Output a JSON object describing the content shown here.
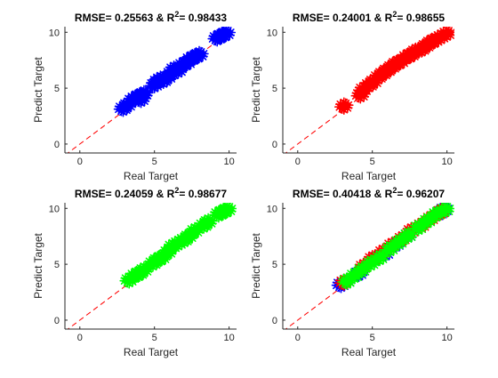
{
  "chart_data": [
    {
      "type": "scatter",
      "title": {
        "rmse_label": "RMSE= ",
        "rmse": "0.25563",
        "sep": " & R",
        "sup": "2",
        "eq": "= ",
        "r2": "0.98433"
      },
      "xlabel": "Real Target",
      "ylabel": "Predict Target",
      "xlim": [
        -1,
        10.5
      ],
      "ylim": [
        -0.8,
        10.5
      ],
      "xticks": [
        0,
        5,
        10
      ],
      "yticks": [
        0,
        5,
        10
      ],
      "marker": "*",
      "reference_line": {
        "from": [
          -1,
          -1
        ],
        "to": [
          10,
          10
        ],
        "style": "dashed",
        "color": "#ff0000"
      },
      "series": [
        {
          "color": "#0000ff",
          "points": [
            [
              2.9,
              3.2
            ],
            [
              3.2,
              3.5
            ],
            [
              3.5,
              3.9
            ],
            [
              3.7,
              4.1
            ],
            [
              4.0,
              4.3
            ],
            [
              4.1,
              4.0
            ],
            [
              4.3,
              4.5
            ],
            [
              5.0,
              5.3
            ],
            [
              5.2,
              5.6
            ],
            [
              5.4,
              5.8
            ],
            [
              5.6,
              5.7
            ],
            [
              5.9,
              6.0
            ],
            [
              6.1,
              6.3
            ],
            [
              6.3,
              6.7
            ],
            [
              6.6,
              6.6
            ],
            [
              6.9,
              7.1
            ],
            [
              7.2,
              7.3
            ],
            [
              7.4,
              7.6
            ],
            [
              7.7,
              7.8
            ],
            [
              8.0,
              8.0
            ],
            [
              9.2,
              9.5
            ],
            [
              9.5,
              9.7
            ],
            [
              9.8,
              9.9
            ]
          ]
        }
      ]
    },
    {
      "type": "scatter",
      "title": {
        "rmse_label": "RMSE= ",
        "rmse": "0.24001",
        "sep": " & R",
        "sup": "2",
        "eq": "= ",
        "r2": "0.98655"
      },
      "xlabel": "Real Target",
      "ylabel": "Predict Target",
      "xlim": [
        -1,
        10.5
      ],
      "ylim": [
        -0.8,
        10.5
      ],
      "xticks": [
        0,
        5,
        10
      ],
      "yticks": [
        0,
        5,
        10
      ],
      "marker": "*",
      "reference_line": {
        "from": [
          -1,
          -1
        ],
        "to": [
          10,
          10
        ],
        "style": "dashed",
        "color": "#ff0000"
      },
      "series": [
        {
          "color": "#ff0000",
          "points": [
            [
              3.1,
              3.4
            ],
            [
              4.2,
              4.4
            ],
            [
              4.4,
              4.9
            ],
            [
              4.8,
              5.3
            ],
            [
              5.1,
              5.6
            ],
            [
              5.4,
              6.0
            ],
            [
              5.7,
              6.3
            ],
            [
              6.0,
              6.6
            ],
            [
              6.3,
              6.9
            ],
            [
              6.6,
              7.2
            ],
            [
              6.9,
              7.4
            ],
            [
              7.3,
              7.8
            ],
            [
              7.6,
              8.0
            ],
            [
              7.9,
              8.3
            ],
            [
              8.3,
              8.5
            ],
            [
              8.6,
              8.8
            ],
            [
              8.9,
              9.1
            ],
            [
              9.2,
              9.3
            ],
            [
              9.6,
              9.6
            ],
            [
              10.0,
              9.9
            ]
          ]
        }
      ]
    },
    {
      "type": "scatter",
      "title": {
        "rmse_label": "RMSE= ",
        "rmse": "0.24059",
        "sep": " & R",
        "sup": "2",
        "eq": "= ",
        "r2": "0.98677"
      },
      "xlabel": "Real Target",
      "ylabel": "Predict Target",
      "xlim": [
        -1,
        10.5
      ],
      "ylim": [
        -0.8,
        10.5
      ],
      "xticks": [
        0,
        5,
        10
      ],
      "yticks": [
        0,
        5,
        10
      ],
      "marker": "*",
      "reference_line": {
        "from": [
          -1,
          -1
        ],
        "to": [
          10,
          10
        ],
        "style": "dashed",
        "color": "#ff0000"
      },
      "series": [
        {
          "color": "#00ff00",
          "points": [
            [
              3.3,
              3.6
            ],
            [
              3.7,
              4.0
            ],
            [
              4.0,
              4.2
            ],
            [
              4.3,
              4.5
            ],
            [
              4.9,
              5.1
            ],
            [
              5.2,
              5.4
            ],
            [
              5.5,
              5.6
            ],
            [
              5.9,
              6.1
            ],
            [
              6.2,
              6.6
            ],
            [
              6.6,
              6.9
            ],
            [
              7.0,
              7.2
            ],
            [
              7.3,
              7.5
            ],
            [
              7.7,
              8.0
            ],
            [
              8.3,
              8.5
            ],
            [
              8.6,
              8.8
            ],
            [
              9.3,
              9.5
            ],
            [
              9.6,
              9.7
            ],
            [
              9.9,
              9.9
            ]
          ]
        }
      ]
    },
    {
      "type": "scatter",
      "title": {
        "rmse_label": "RMSE= ",
        "rmse": "0.40418",
        "sep": " & R",
        "sup": "2",
        "eq": "= ",
        "r2": "0.96207"
      },
      "xlabel": "Real Target",
      "ylabel": "Predict Target",
      "xlim": [
        -1,
        10.5
      ],
      "ylim": [
        -0.8,
        10.5
      ],
      "xticks": [
        0,
        5,
        10
      ],
      "yticks": [
        0,
        5,
        10
      ],
      "marker": "*",
      "reference_line": {
        "from": [
          -1,
          -1
        ],
        "to": [
          10,
          10
        ],
        "style": "dashed",
        "color": "#ff0000"
      },
      "series": [
        {
          "color": "#0000ff",
          "points": [
            [
              2.9,
              3.2
            ],
            [
              3.3,
              3.5
            ],
            [
              4.1,
              4.2
            ],
            [
              5.2,
              5.5
            ],
            [
              5.9,
              6.0
            ],
            [
              6.6,
              6.8
            ],
            [
              7.4,
              7.6
            ],
            [
              9.5,
              9.6
            ],
            [
              9.8,
              9.9
            ]
          ]
        },
        {
          "color": "#ff0000",
          "points": [
            [
              3.1,
              3.4
            ],
            [
              4.4,
              4.8
            ],
            [
              5.0,
              5.5
            ],
            [
              5.7,
              6.1
            ],
            [
              6.3,
              6.7
            ],
            [
              7.0,
              7.3
            ],
            [
              7.6,
              8.0
            ],
            [
              8.3,
              8.5
            ],
            [
              8.9,
              9.1
            ],
            [
              9.6,
              9.7
            ]
          ]
        },
        {
          "color": "#00ff00",
          "points": [
            [
              3.3,
              3.5
            ],
            [
              3.8,
              4.0
            ],
            [
              4.3,
              4.5
            ],
            [
              4.9,
              5.1
            ],
            [
              5.5,
              5.6
            ],
            [
              6.2,
              6.4
            ],
            [
              6.8,
              7.0
            ],
            [
              7.4,
              7.6
            ],
            [
              8.1,
              8.3
            ],
            [
              8.7,
              8.9
            ],
            [
              9.3,
              9.5
            ],
            [
              9.9,
              9.9
            ]
          ]
        }
      ]
    }
  ]
}
